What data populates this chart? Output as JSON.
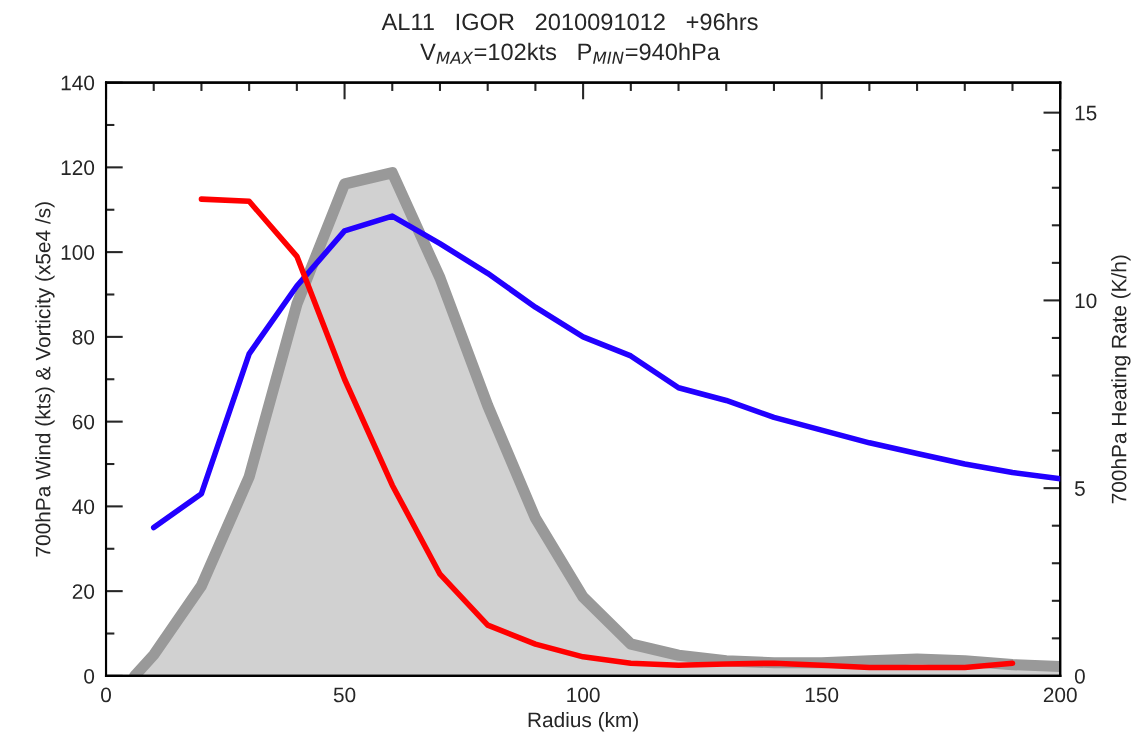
{
  "chart_data": {
    "type": "line",
    "title": "AL11   IGOR   2010091012   +96hrs",
    "subtitle": "V$_{MAX}$=102kts   P$_{MIN}$=940hPa",
    "xlabel": "Radius (km)",
    "ylabel": "700hPa Wind (kts) & Vorticity (x5e4 /s)",
    "y2label": "700hPa Heating Rate (K/h)",
    "xlim": [
      0,
      200
    ],
    "xticks": [
      0,
      50,
      100,
      150,
      200
    ],
    "ylim": [
      0,
      140
    ],
    "yticks": [
      0,
      20,
      40,
      60,
      80,
      100,
      120,
      140
    ],
    "y2lim": [
      0,
      15.8
    ],
    "y2ticks": [
      0,
      5,
      10,
      15
    ],
    "grid": false,
    "legend": false,
    "series": [
      {
        "type": "area",
        "axis": "y2",
        "color": "#999999",
        "x": [
          6,
          10,
          20,
          30,
          40,
          50,
          60,
          70,
          80,
          90,
          100,
          110,
          120,
          130,
          140,
          150,
          160,
          170,
          180,
          190,
          200
        ],
        "values": [
          0,
          0.56,
          2.4,
          5.3,
          9.9,
          13.1,
          13.4,
          10.6,
          7.2,
          4.2,
          2.1,
          0.85,
          0.55,
          0.4,
          0.35,
          0.35,
          0.4,
          0.45,
          0.4,
          0.3,
          0.25
        ]
      },
      {
        "color": "#2200ff",
        "x": [
          10,
          20,
          30,
          40,
          50,
          60,
          70,
          80,
          90,
          100,
          110,
          120,
          130,
          140,
          150,
          160,
          170,
          180,
          190,
          200
        ],
        "values": [
          35,
          43,
          76,
          92,
          105,
          108.5,
          102,
          95,
          87,
          80,
          75.5,
          68,
          65,
          61,
          58,
          55,
          52.5,
          50,
          48,
          46.5
        ]
      },
      {
        "color": "#ff0000",
        "x": [
          20,
          30,
          40,
          50,
          60,
          70,
          80,
          90,
          100,
          110,
          120,
          130,
          140,
          150,
          160,
          170,
          180,
          190
        ],
        "values": [
          112.5,
          112,
          99,
          70,
          45,
          24,
          12,
          7.5,
          4.5,
          3,
          2.5,
          2.8,
          3,
          2.5,
          2,
          2,
          2,
          3
        ]
      }
    ]
  }
}
